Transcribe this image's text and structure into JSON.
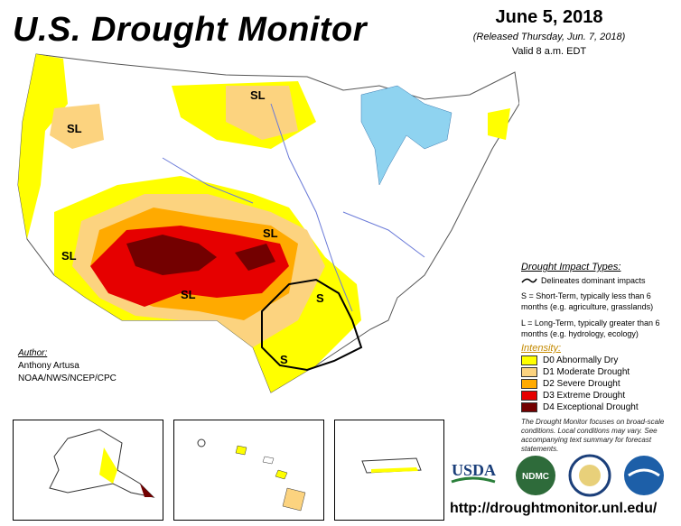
{
  "header": {
    "title": "U.S. Drought Monitor",
    "date": "June 5, 2018",
    "released": "(Released Thursday, Jun. 7, 2018)",
    "valid": "Valid 8 a.m. EDT"
  },
  "map_labels": [
    "SL",
    "SL",
    "SL",
    "SL",
    "SL",
    "S",
    "S"
  ],
  "author": {
    "heading": "Author:",
    "name": "Anthony Artusa",
    "org": "NOAA/NWS/NCEP/CPC"
  },
  "legend": {
    "impact_header": "Drought Impact Types:",
    "delineates": "Delineates dominant impacts",
    "short_term": "S = Short-Term, typically less than 6 months (e.g. agriculture, grasslands)",
    "long_term": "L = Long-Term, typically greater than 6 months (e.g. hydrology, ecology)",
    "intensity_header": "Intensity:",
    "categories": [
      {
        "label": "D0 Abnormally Dry",
        "color": "#ffff00"
      },
      {
        "label": "D1 Moderate Drought",
        "color": "#fcd37f"
      },
      {
        "label": "D2 Severe Drought",
        "color": "#ffaa00"
      },
      {
        "label": "D3 Extreme Drought",
        "color": "#e60000"
      },
      {
        "label": "D4 Exceptional Drought",
        "color": "#730000"
      }
    ]
  },
  "disclaimer": "The Drought Monitor focuses on broad-scale conditions. Local conditions may vary. See accompanying text summary for forecast statements.",
  "logos": {
    "usda": "USDA",
    "ndmc": "NDMC"
  },
  "url": "http://droughtmonitor.unl.edu/",
  "colors": {
    "water": "#8fd3f0",
    "boundary": "#555555",
    "river": "#6a7ad8"
  }
}
